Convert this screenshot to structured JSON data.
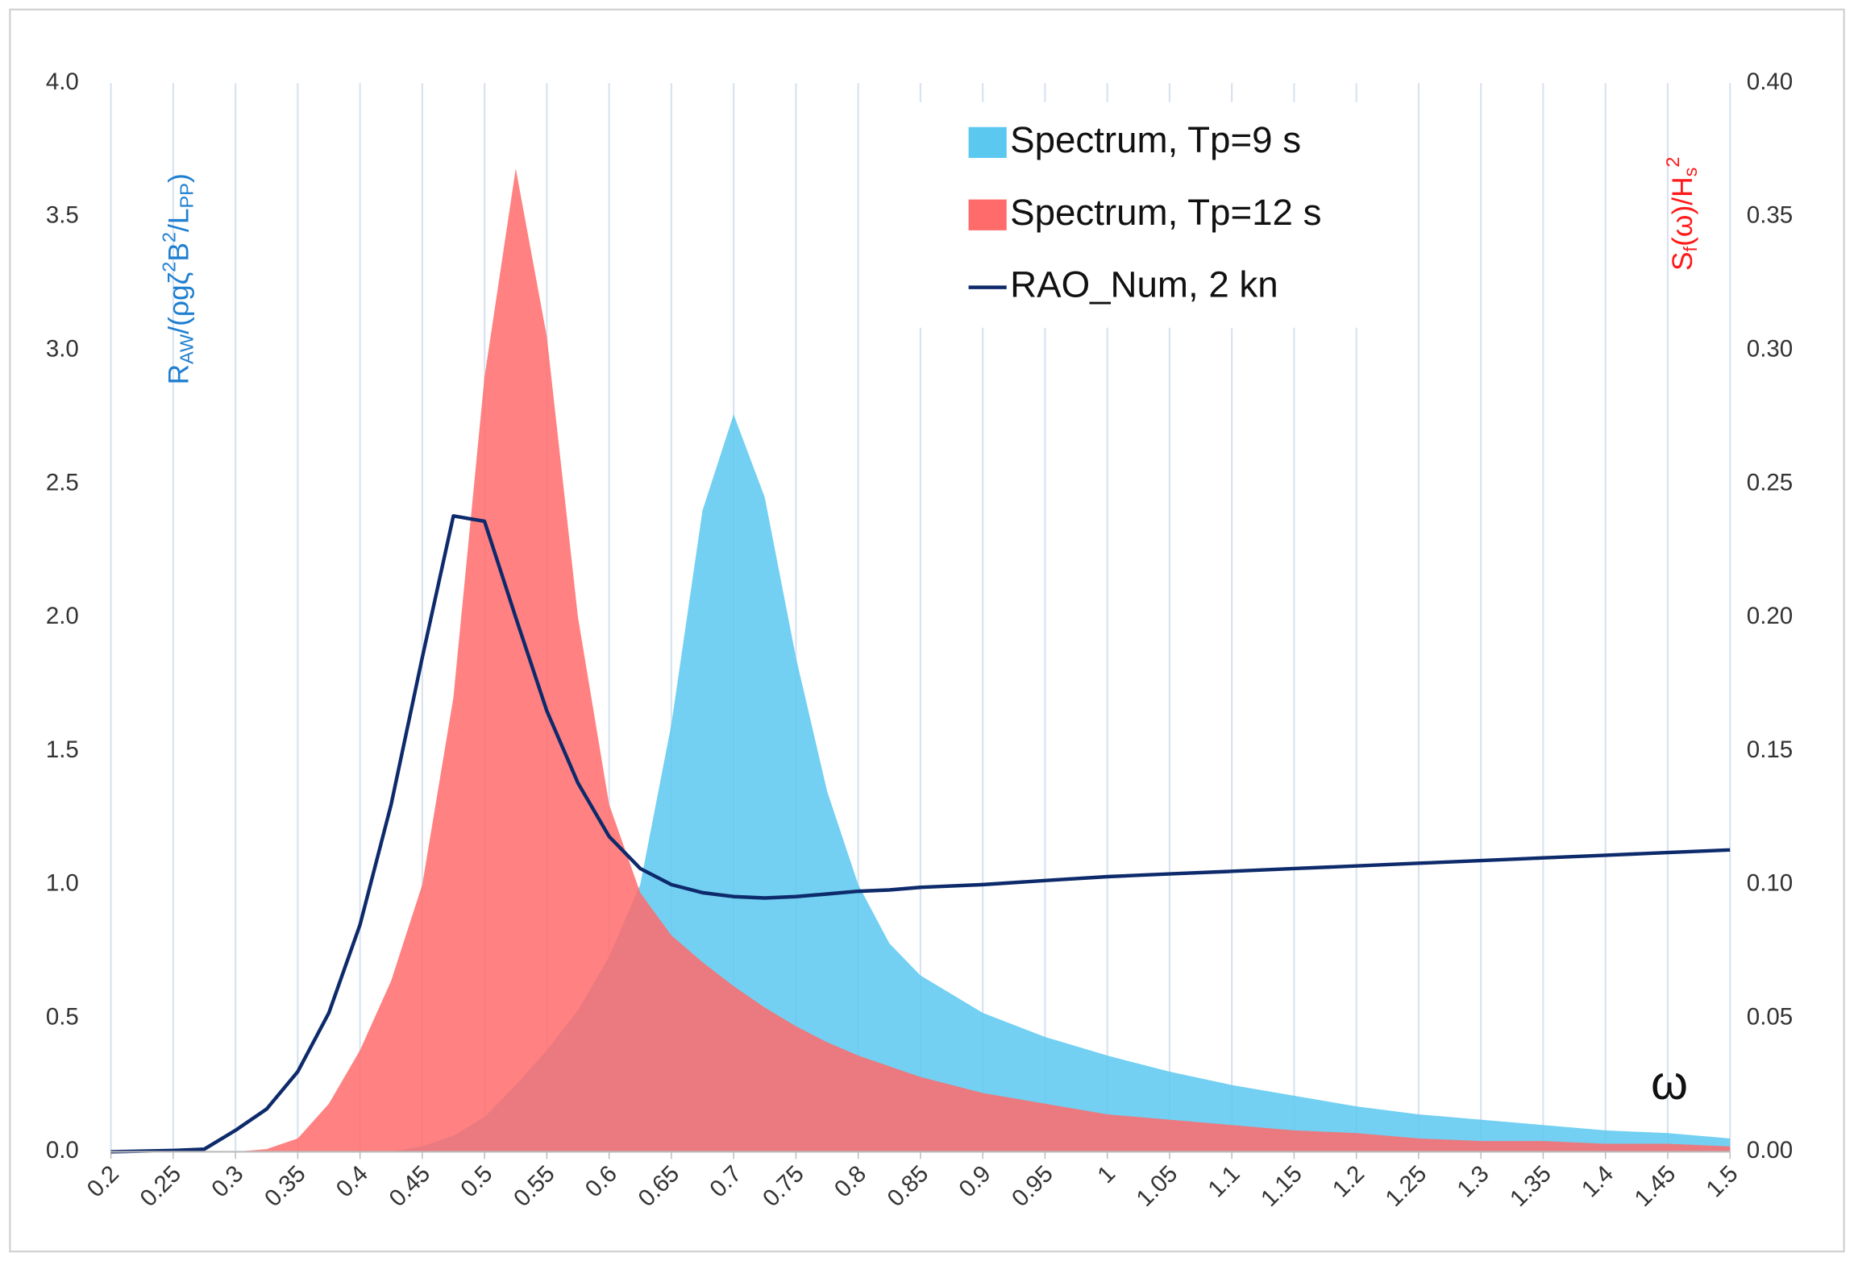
{
  "chart_data": {
    "type": "area",
    "ylabel": [
      {
        "text": "R"
      },
      {
        "text": "AW",
        "shift": "sub"
      },
      {
        "text": "/(ρgζ"
      },
      {
        "text": "2",
        "shift": "super"
      },
      {
        "text": "B"
      },
      {
        "text": "2",
        "shift": "super"
      },
      {
        "text": "/L"
      },
      {
        "text": "PP",
        "shift": "sub"
      },
      {
        "text": ")"
      }
    ],
    "ylabel_color": "#1f7fd0",
    "y2label": [
      {
        "text": "S"
      },
      {
        "text": "f",
        "shift": "sub"
      },
      {
        "text": "(ω)/H"
      },
      {
        "text": "s",
        "shift": "sub"
      },
      {
        "text": "2",
        "shift": "super"
      }
    ],
    "y2label_color": "#ff1a1a",
    "annotation": "ω",
    "x": [
      0.2,
      0.25,
      0.275,
      0.3,
      0.325,
      0.35,
      0.375,
      0.4,
      0.425,
      0.45,
      0.475,
      0.5,
      0.525,
      0.55,
      0.575,
      0.6,
      0.625,
      0.65,
      0.675,
      0.7,
      0.725,
      0.75,
      0.775,
      0.8,
      0.825,
      0.85,
      0.9,
      0.95,
      1.0,
      1.05,
      1.1,
      1.15,
      1.2,
      1.25,
      1.3,
      1.35,
      1.4,
      1.45,
      1.5
    ],
    "series": [
      {
        "name": "Spectrum, Tp=9 s",
        "type": "area",
        "axis": "y2",
        "color": "#5bc8f0",
        "values": [
          0,
          0,
          0,
          0,
          0,
          0,
          0,
          0,
          0,
          0.002,
          0.006,
          0.013,
          0.025,
          0.038,
          0.053,
          0.073,
          0.1,
          0.16,
          0.24,
          0.276,
          0.245,
          0.185,
          0.135,
          0.1,
          0.078,
          0.066,
          0.052,
          0.043,
          0.036,
          0.03,
          0.025,
          0.021,
          0.017,
          0.014,
          0.012,
          0.01,
          0.008,
          0.007,
          0.005
        ]
      },
      {
        "name": "Spectrum, Tp=12 s",
        "type": "area",
        "axis": "y2",
        "color": "#ff6b6b",
        "values": [
          0,
          0,
          0,
          0,
          0.001,
          0.005,
          0.018,
          0.038,
          0.064,
          0.1,
          0.17,
          0.29,
          0.368,
          0.305,
          0.2,
          0.13,
          0.097,
          0.081,
          0.071,
          0.062,
          0.054,
          0.047,
          0.041,
          0.036,
          0.032,
          0.028,
          0.022,
          0.018,
          0.014,
          0.012,
          0.01,
          0.008,
          0.007,
          0.005,
          0.004,
          0.004,
          0.003,
          0.003,
          0.002
        ]
      },
      {
        "name": "RAO_Num, 2 kn",
        "type": "line",
        "color": "#0d2a6b",
        "values": [
          0,
          0.005,
          0.01,
          0.08,
          0.16,
          0.3,
          0.52,
          0.85,
          1.3,
          1.85,
          2.38,
          2.36,
          2.0,
          1.65,
          1.38,
          1.18,
          1.06,
          1.0,
          0.97,
          0.955,
          0.95,
          0.955,
          0.965,
          0.975,
          0.98,
          0.99,
          1.0,
          1.015,
          1.03,
          1.04,
          1.05,
          1.06,
          1.07,
          1.08,
          1.09,
          1.1,
          1.11,
          1.12,
          1.13
        ]
      }
    ],
    "xlim": [
      0.2,
      1.5
    ],
    "xticks": [
      0.2,
      0.25,
      0.3,
      0.35,
      0.4,
      0.45,
      0.5,
      0.55,
      0.6,
      0.65,
      0.7,
      0.75,
      0.8,
      0.85,
      0.9,
      0.95,
      1,
      1.05,
      1.1,
      1.15,
      1.2,
      1.25,
      1.3,
      1.35,
      1.4,
      1.45,
      1.5
    ],
    "ylim": [
      0,
      4
    ],
    "yticks": [
      {
        "value": 0,
        "label": "0.0"
      },
      {
        "value": 0.5,
        "label": "0.5"
      },
      {
        "value": 1,
        "label": "1.0"
      },
      {
        "value": 1.5,
        "label": "1.5"
      },
      {
        "value": 2,
        "label": "2.0"
      },
      {
        "value": 2.5,
        "label": "2.5"
      },
      {
        "value": 3,
        "label": "3.0"
      },
      {
        "value": 3.5,
        "label": "3.5"
      },
      {
        "value": 4,
        "label": "4.0"
      }
    ],
    "y2lim": [
      0,
      0.4
    ],
    "y2ticks": [
      {
        "value": 0,
        "label": "0.00"
      },
      {
        "value": 0.05,
        "label": "0.05"
      },
      {
        "value": 0.1,
        "label": "0.10"
      },
      {
        "value": 0.15,
        "label": "0.15"
      },
      {
        "value": 0.2,
        "label": "0.20"
      },
      {
        "value": 0.25,
        "label": "0.25"
      },
      {
        "value": 0.3,
        "label": "0.30"
      },
      {
        "value": 0.35,
        "label": "0.35"
      },
      {
        "value": 0.4,
        "label": "0.40"
      }
    ],
    "grid": "x",
    "legend": "top-right"
  }
}
